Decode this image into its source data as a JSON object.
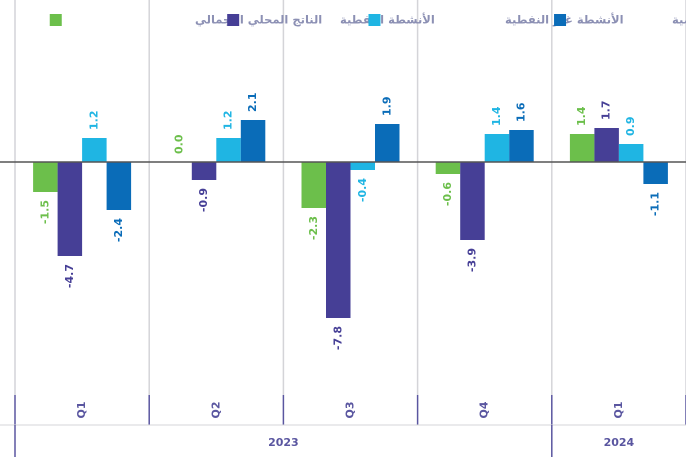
{
  "chart_data": {
    "type": "bar",
    "categories": [
      "Q1",
      "Q2",
      "Q3",
      "Q4",
      "Q1"
    ],
    "years": [
      "2023",
      "2023",
      "2023",
      "2023",
      "2024"
    ],
    "series": [
      {
        "name": "الناتج المحلي الإجمالي",
        "color": "#6cbf4b",
        "values": [
          -1.5,
          0.0,
          -2.3,
          -0.6,
          1.4
        ],
        "value_labels": [
          "-1.5",
          "0.0",
          "-2.3",
          "-0.6",
          "1.4"
        ]
      },
      {
        "name": "الأنشطة النفطية",
        "color": "#463f96",
        "values": [
          -4.7,
          -0.9,
          -7.8,
          -3.9,
          1.7
        ],
        "value_labels": [
          "-4.7",
          "-0.9",
          "-7.8",
          "-3.9",
          "1.7"
        ]
      },
      {
        "name": "الأنشطة غير النفطية",
        "color": "#1fb5e3",
        "values": [
          1.2,
          1.2,
          -0.4,
          1.4,
          0.9
        ],
        "value_labels": [
          "1.2",
          "1.2",
          "-0.4",
          "1.4",
          "0.9"
        ]
      },
      {
        "name": "الأنشطة الحكومية",
        "color": "#0a6cb8",
        "values": [
          -2.4,
          2.1,
          1.9,
          1.6,
          -1.1
        ],
        "value_labels": [
          "-2.4",
          "2.1",
          "1.9",
          "1.6",
          "-1.1"
        ]
      }
    ],
    "ylim": [
      -10,
      8
    ]
  }
}
